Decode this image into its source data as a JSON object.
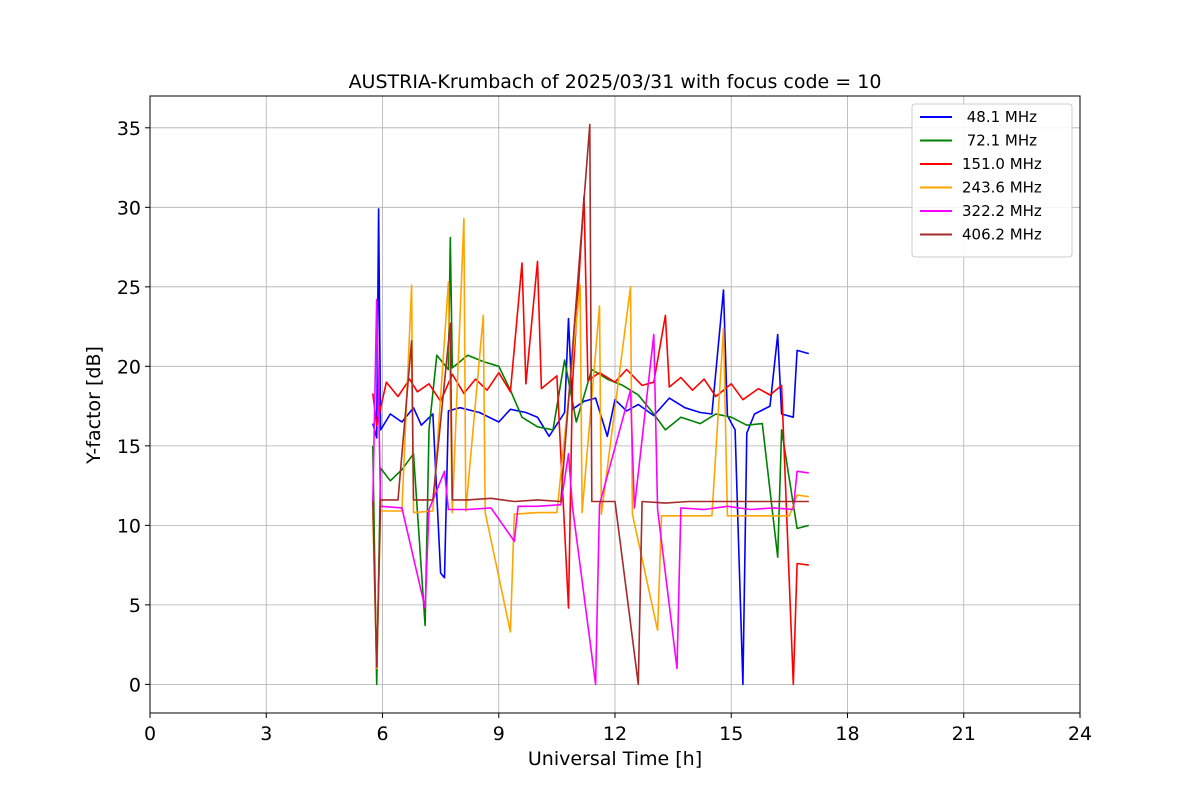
{
  "chart_data": {
    "type": "line",
    "title": "AUSTRIA-Krumbach of 2025/03/31 with focus code = 10",
    "xlabel": "Universal Time [h]",
    "ylabel": "Y-factor [dB]",
    "xlim": [
      0,
      24
    ],
    "ylim": [
      -1.8,
      37
    ],
    "xticks": [
      0,
      3,
      6,
      9,
      12,
      15,
      18,
      21,
      24
    ],
    "yticks": [
      0,
      5,
      10,
      15,
      20,
      25,
      30,
      35
    ],
    "grid": true,
    "legend_position": "top-right",
    "series": [
      {
        "name": " 48.1 MHz",
        "color": "#0000ff",
        "points": [
          [
            5.75,
            16.4
          ],
          [
            5.85,
            15.5
          ],
          [
            5.9,
            29.9
          ],
          [
            5.95,
            16.0
          ],
          [
            6.2,
            17.0
          ],
          [
            6.5,
            16.5
          ],
          [
            6.8,
            17.4
          ],
          [
            7.0,
            16.3
          ],
          [
            7.3,
            17.0
          ],
          [
            7.5,
            7.0
          ],
          [
            7.6,
            6.7
          ],
          [
            7.7,
            17.2
          ],
          [
            8.0,
            17.4
          ],
          [
            8.5,
            17.1
          ],
          [
            9.0,
            16.5
          ],
          [
            9.3,
            17.3
          ],
          [
            9.7,
            17.1
          ],
          [
            10.0,
            16.8
          ],
          [
            10.3,
            15.6
          ],
          [
            10.7,
            17.1
          ],
          [
            10.8,
            23.0
          ],
          [
            10.9,
            17.3
          ],
          [
            11.2,
            17.8
          ],
          [
            11.5,
            18.0
          ],
          [
            11.8,
            15.6
          ],
          [
            12.0,
            17.9
          ],
          [
            12.3,
            17.2
          ],
          [
            12.6,
            17.6
          ],
          [
            13.0,
            16.9
          ],
          [
            13.4,
            18.0
          ],
          [
            13.8,
            17.4
          ],
          [
            14.2,
            17.1
          ],
          [
            14.5,
            17.0
          ],
          [
            14.8,
            24.8
          ],
          [
            14.9,
            16.9
          ],
          [
            15.1,
            16.0
          ],
          [
            15.3,
            0.0
          ],
          [
            15.4,
            15.8
          ],
          [
            15.6,
            17.0
          ],
          [
            16.0,
            17.5
          ],
          [
            16.2,
            22.0
          ],
          [
            16.3,
            17.0
          ],
          [
            16.6,
            16.8
          ],
          [
            16.7,
            21.0
          ],
          [
            17.0,
            20.8
          ]
        ]
      },
      {
        "name": " 72.1 MHz",
        "color": "#008000",
        "points": [
          [
            5.75,
            15.0
          ],
          [
            5.85,
            0.0
          ],
          [
            5.95,
            13.6
          ],
          [
            6.2,
            12.8
          ],
          [
            6.5,
            13.5
          ],
          [
            6.8,
            14.5
          ],
          [
            7.1,
            3.7
          ],
          [
            7.2,
            16.0
          ],
          [
            7.4,
            20.7
          ],
          [
            7.7,
            19.8
          ],
          [
            7.75,
            28.1
          ],
          [
            7.8,
            19.9
          ],
          [
            8.2,
            20.7
          ],
          [
            8.6,
            20.3
          ],
          [
            9.0,
            20.0
          ],
          [
            9.3,
            18.5
          ],
          [
            9.6,
            16.8
          ],
          [
            10.0,
            16.2
          ],
          [
            10.4,
            16.0
          ],
          [
            10.7,
            20.4
          ],
          [
            11.0,
            16.5
          ],
          [
            11.4,
            19.8
          ],
          [
            11.8,
            19.2
          ],
          [
            12.2,
            18.8
          ],
          [
            12.6,
            18.2
          ],
          [
            13.0,
            17.0
          ],
          [
            13.3,
            16.0
          ],
          [
            13.7,
            16.8
          ],
          [
            14.2,
            16.4
          ],
          [
            14.6,
            17.0
          ],
          [
            15.0,
            16.8
          ],
          [
            15.4,
            16.3
          ],
          [
            15.8,
            16.4
          ],
          [
            16.2,
            8.0
          ],
          [
            16.3,
            16.0
          ],
          [
            16.7,
            9.8
          ],
          [
            17.0,
            10.0
          ]
        ]
      },
      {
        "name": "151.0 MHz",
        "color": "#ff0000",
        "points": [
          [
            5.75,
            18.3
          ],
          [
            5.85,
            16.3
          ],
          [
            6.1,
            19.0
          ],
          [
            6.4,
            18.1
          ],
          [
            6.7,
            19.2
          ],
          [
            6.9,
            18.4
          ],
          [
            7.2,
            18.9
          ],
          [
            7.5,
            17.8
          ],
          [
            7.8,
            19.5
          ],
          [
            8.1,
            18.3
          ],
          [
            8.4,
            19.2
          ],
          [
            8.7,
            18.5
          ],
          [
            9.0,
            19.6
          ],
          [
            9.3,
            18.4
          ],
          [
            9.6,
            26.5
          ],
          [
            9.7,
            18.9
          ],
          [
            10.0,
            26.6
          ],
          [
            10.1,
            18.6
          ],
          [
            10.5,
            19.4
          ],
          [
            10.8,
            4.8
          ],
          [
            10.9,
            18.8
          ],
          [
            11.2,
            30.7
          ],
          [
            11.3,
            19.1
          ],
          [
            11.6,
            19.6
          ],
          [
            12.0,
            19.0
          ],
          [
            12.3,
            19.8
          ],
          [
            12.7,
            18.8
          ],
          [
            13.0,
            19.0
          ],
          [
            13.3,
            23.2
          ],
          [
            13.4,
            18.7
          ],
          [
            13.7,
            19.3
          ],
          [
            14.0,
            18.5
          ],
          [
            14.3,
            19.2
          ],
          [
            14.6,
            18.1
          ],
          [
            15.0,
            18.9
          ],
          [
            15.3,
            17.9
          ],
          [
            15.7,
            18.6
          ],
          [
            16.0,
            18.2
          ],
          [
            16.3,
            18.8
          ],
          [
            16.6,
            0.0
          ],
          [
            16.7,
            7.6
          ],
          [
            17.0,
            7.5
          ]
        ]
      },
      {
        "name": "243.6 MHz",
        "color": "#ffa500",
        "points": [
          [
            5.75,
            10.8
          ],
          [
            5.85,
            1.0
          ],
          [
            5.95,
            10.9
          ],
          [
            6.5,
            10.9
          ],
          [
            6.75,
            25.1
          ],
          [
            6.8,
            10.8
          ],
          [
            7.3,
            10.9
          ],
          [
            7.7,
            25.3
          ],
          [
            7.8,
            10.8
          ],
          [
            8.1,
            29.3
          ],
          [
            8.15,
            10.9
          ],
          [
            8.6,
            23.2
          ],
          [
            8.65,
            10.8
          ],
          [
            9.3,
            3.3
          ],
          [
            9.4,
            10.7
          ],
          [
            10.0,
            10.8
          ],
          [
            10.5,
            10.8
          ],
          [
            11.1,
            25.1
          ],
          [
            11.15,
            10.8
          ],
          [
            11.6,
            23.8
          ],
          [
            11.65,
            10.7
          ],
          [
            12.4,
            25.0
          ],
          [
            12.45,
            10.7
          ],
          [
            13.1,
            3.4
          ],
          [
            13.2,
            10.6
          ],
          [
            13.8,
            10.6
          ],
          [
            14.5,
            10.6
          ],
          [
            14.8,
            22.4
          ],
          [
            14.9,
            10.6
          ],
          [
            15.5,
            10.6
          ],
          [
            16.0,
            10.6
          ],
          [
            16.5,
            10.6
          ],
          [
            16.7,
            11.9
          ],
          [
            17.0,
            11.8
          ]
        ]
      },
      {
        "name": "322.2 MHz",
        "color": "#ff00ff",
        "points": [
          [
            5.75,
            11.4
          ],
          [
            5.85,
            24.2
          ],
          [
            5.95,
            11.2
          ],
          [
            6.5,
            11.1
          ],
          [
            7.1,
            4.8
          ],
          [
            7.2,
            11.0
          ],
          [
            7.6,
            13.4
          ],
          [
            7.7,
            11.0
          ],
          [
            8.2,
            11.0
          ],
          [
            8.8,
            11.1
          ],
          [
            9.4,
            9.0
          ],
          [
            9.5,
            11.2
          ],
          [
            10.0,
            11.2
          ],
          [
            10.6,
            11.3
          ],
          [
            10.8,
            14.5
          ],
          [
            10.9,
            11.2
          ],
          [
            11.5,
            0.0
          ],
          [
            11.6,
            11.3
          ],
          [
            12.4,
            18.5
          ],
          [
            12.5,
            11.1
          ],
          [
            13.0,
            22.0
          ],
          [
            13.1,
            11.0
          ],
          [
            13.6,
            1.0
          ],
          [
            13.7,
            11.1
          ],
          [
            14.3,
            11.0
          ],
          [
            14.9,
            11.2
          ],
          [
            15.5,
            11.0
          ],
          [
            16.1,
            11.1
          ],
          [
            16.6,
            11.0
          ],
          [
            16.7,
            13.4
          ],
          [
            17.0,
            13.3
          ]
        ]
      },
      {
        "name": "406.2 MHz",
        "color": "#a52a2a",
        "points": [
          [
            5.75,
            11.5
          ],
          [
            5.85,
            1.1
          ],
          [
            5.95,
            11.6
          ],
          [
            6.4,
            11.6
          ],
          [
            6.75,
            21.6
          ],
          [
            6.8,
            11.6
          ],
          [
            7.3,
            11.6
          ],
          [
            7.75,
            22.7
          ],
          [
            7.8,
            11.6
          ],
          [
            8.2,
            11.6
          ],
          [
            8.8,
            11.7
          ],
          [
            9.4,
            11.5
          ],
          [
            10.0,
            11.6
          ],
          [
            10.6,
            11.5
          ],
          [
            11.35,
            35.2
          ],
          [
            11.4,
            11.5
          ],
          [
            12.0,
            11.5
          ],
          [
            12.6,
            0.0
          ],
          [
            12.7,
            11.5
          ],
          [
            13.3,
            11.4
          ],
          [
            13.9,
            11.5
          ],
          [
            14.5,
            11.5
          ],
          [
            15.1,
            11.5
          ],
          [
            15.7,
            11.5
          ],
          [
            16.3,
            11.5
          ],
          [
            16.6,
            11.5
          ],
          [
            17.0,
            11.5
          ]
        ]
      }
    ]
  }
}
